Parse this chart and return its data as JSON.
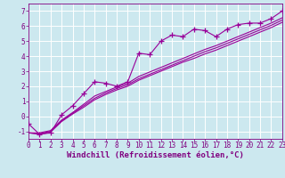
{
  "title": "",
  "xlabel": "Windchill (Refroidissement éolien,°C)",
  "ylabel": "",
  "background_color": "#cce8ef",
  "line_color": "#990099",
  "grid_color": "#ffffff",
  "x_data": [
    0,
    1,
    2,
    3,
    4,
    5,
    6,
    7,
    8,
    9,
    10,
    11,
    12,
    13,
    14,
    15,
    16,
    17,
    18,
    19,
    20,
    21,
    22,
    23
  ],
  "y_main": [
    -0.5,
    -1.2,
    -1.1,
    0.1,
    0.7,
    1.5,
    2.3,
    2.2,
    2.0,
    2.3,
    4.2,
    4.1,
    5.0,
    5.4,
    5.3,
    5.8,
    5.7,
    5.3,
    5.8,
    6.1,
    6.2,
    6.2,
    6.5,
    7.0
  ],
  "y_line1": [
    -1.1,
    -1.15,
    -1.0,
    -0.3,
    0.2,
    0.7,
    1.2,
    1.55,
    1.85,
    2.1,
    2.5,
    2.8,
    3.1,
    3.4,
    3.7,
    4.0,
    4.3,
    4.55,
    4.85,
    5.15,
    5.45,
    5.75,
    6.05,
    6.4
  ],
  "y_line2": [
    -1.1,
    -1.2,
    -1.05,
    -0.35,
    0.15,
    0.6,
    1.1,
    1.45,
    1.75,
    2.0,
    2.4,
    2.7,
    3.0,
    3.3,
    3.6,
    3.85,
    4.15,
    4.4,
    4.7,
    5.0,
    5.3,
    5.6,
    5.9,
    6.25
  ],
  "y_line3": [
    -1.1,
    -1.1,
    -0.95,
    -0.25,
    0.25,
    0.8,
    1.35,
    1.65,
    1.95,
    2.2,
    2.65,
    2.95,
    3.25,
    3.55,
    3.85,
    4.15,
    4.45,
    4.7,
    5.0,
    5.3,
    5.6,
    5.9,
    6.2,
    6.55
  ],
  "xlim": [
    0,
    23
  ],
  "ylim": [
    -1.5,
    7.5
  ],
  "yticks": [
    -1,
    0,
    1,
    2,
    3,
    4,
    5,
    6,
    7
  ],
  "xticks": [
    0,
    1,
    2,
    3,
    4,
    5,
    6,
    7,
    8,
    9,
    10,
    11,
    12,
    13,
    14,
    15,
    16,
    17,
    18,
    19,
    20,
    21,
    22,
    23
  ],
  "marker": "+",
  "linewidth": 0.8,
  "markersize": 4,
  "xlabel_fontsize": 6.5,
  "tick_fontsize": 5.5,
  "font_color": "#800080"
}
